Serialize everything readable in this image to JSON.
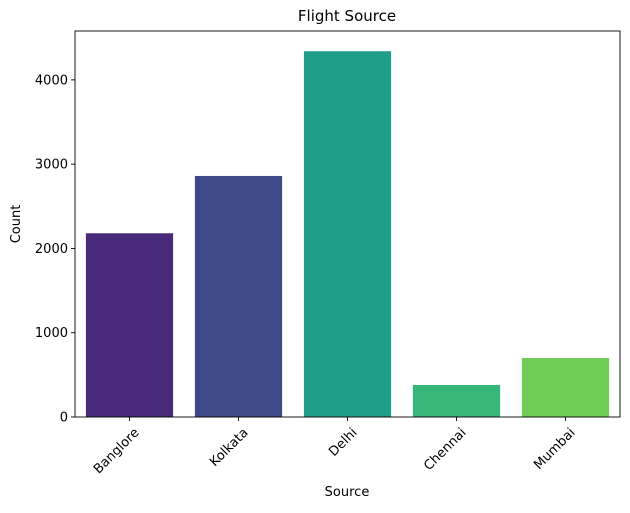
{
  "chart_data": {
    "type": "bar",
    "title": "Flight Source",
    "xlabel": "Source",
    "ylabel": "Count",
    "categories": [
      "Banglore",
      "Kolkata",
      "Delhi",
      "Chennai",
      "Mumbai"
    ],
    "values": [
      2180,
      2860,
      4340,
      380,
      700
    ],
    "colors": [
      "#482878",
      "#3e4989",
      "#1f9e89",
      "#35b779",
      "#6ece58"
    ],
    "ylim": [
      0,
      4580
    ],
    "yticks": [
      0,
      1000,
      2000,
      3000,
      4000
    ],
    "ytick_labels": [
      "0",
      "1000",
      "2000",
      "3000",
      "4000"
    ],
    "xtick_rotation": 45,
    "grid": false,
    "legend": false
  }
}
